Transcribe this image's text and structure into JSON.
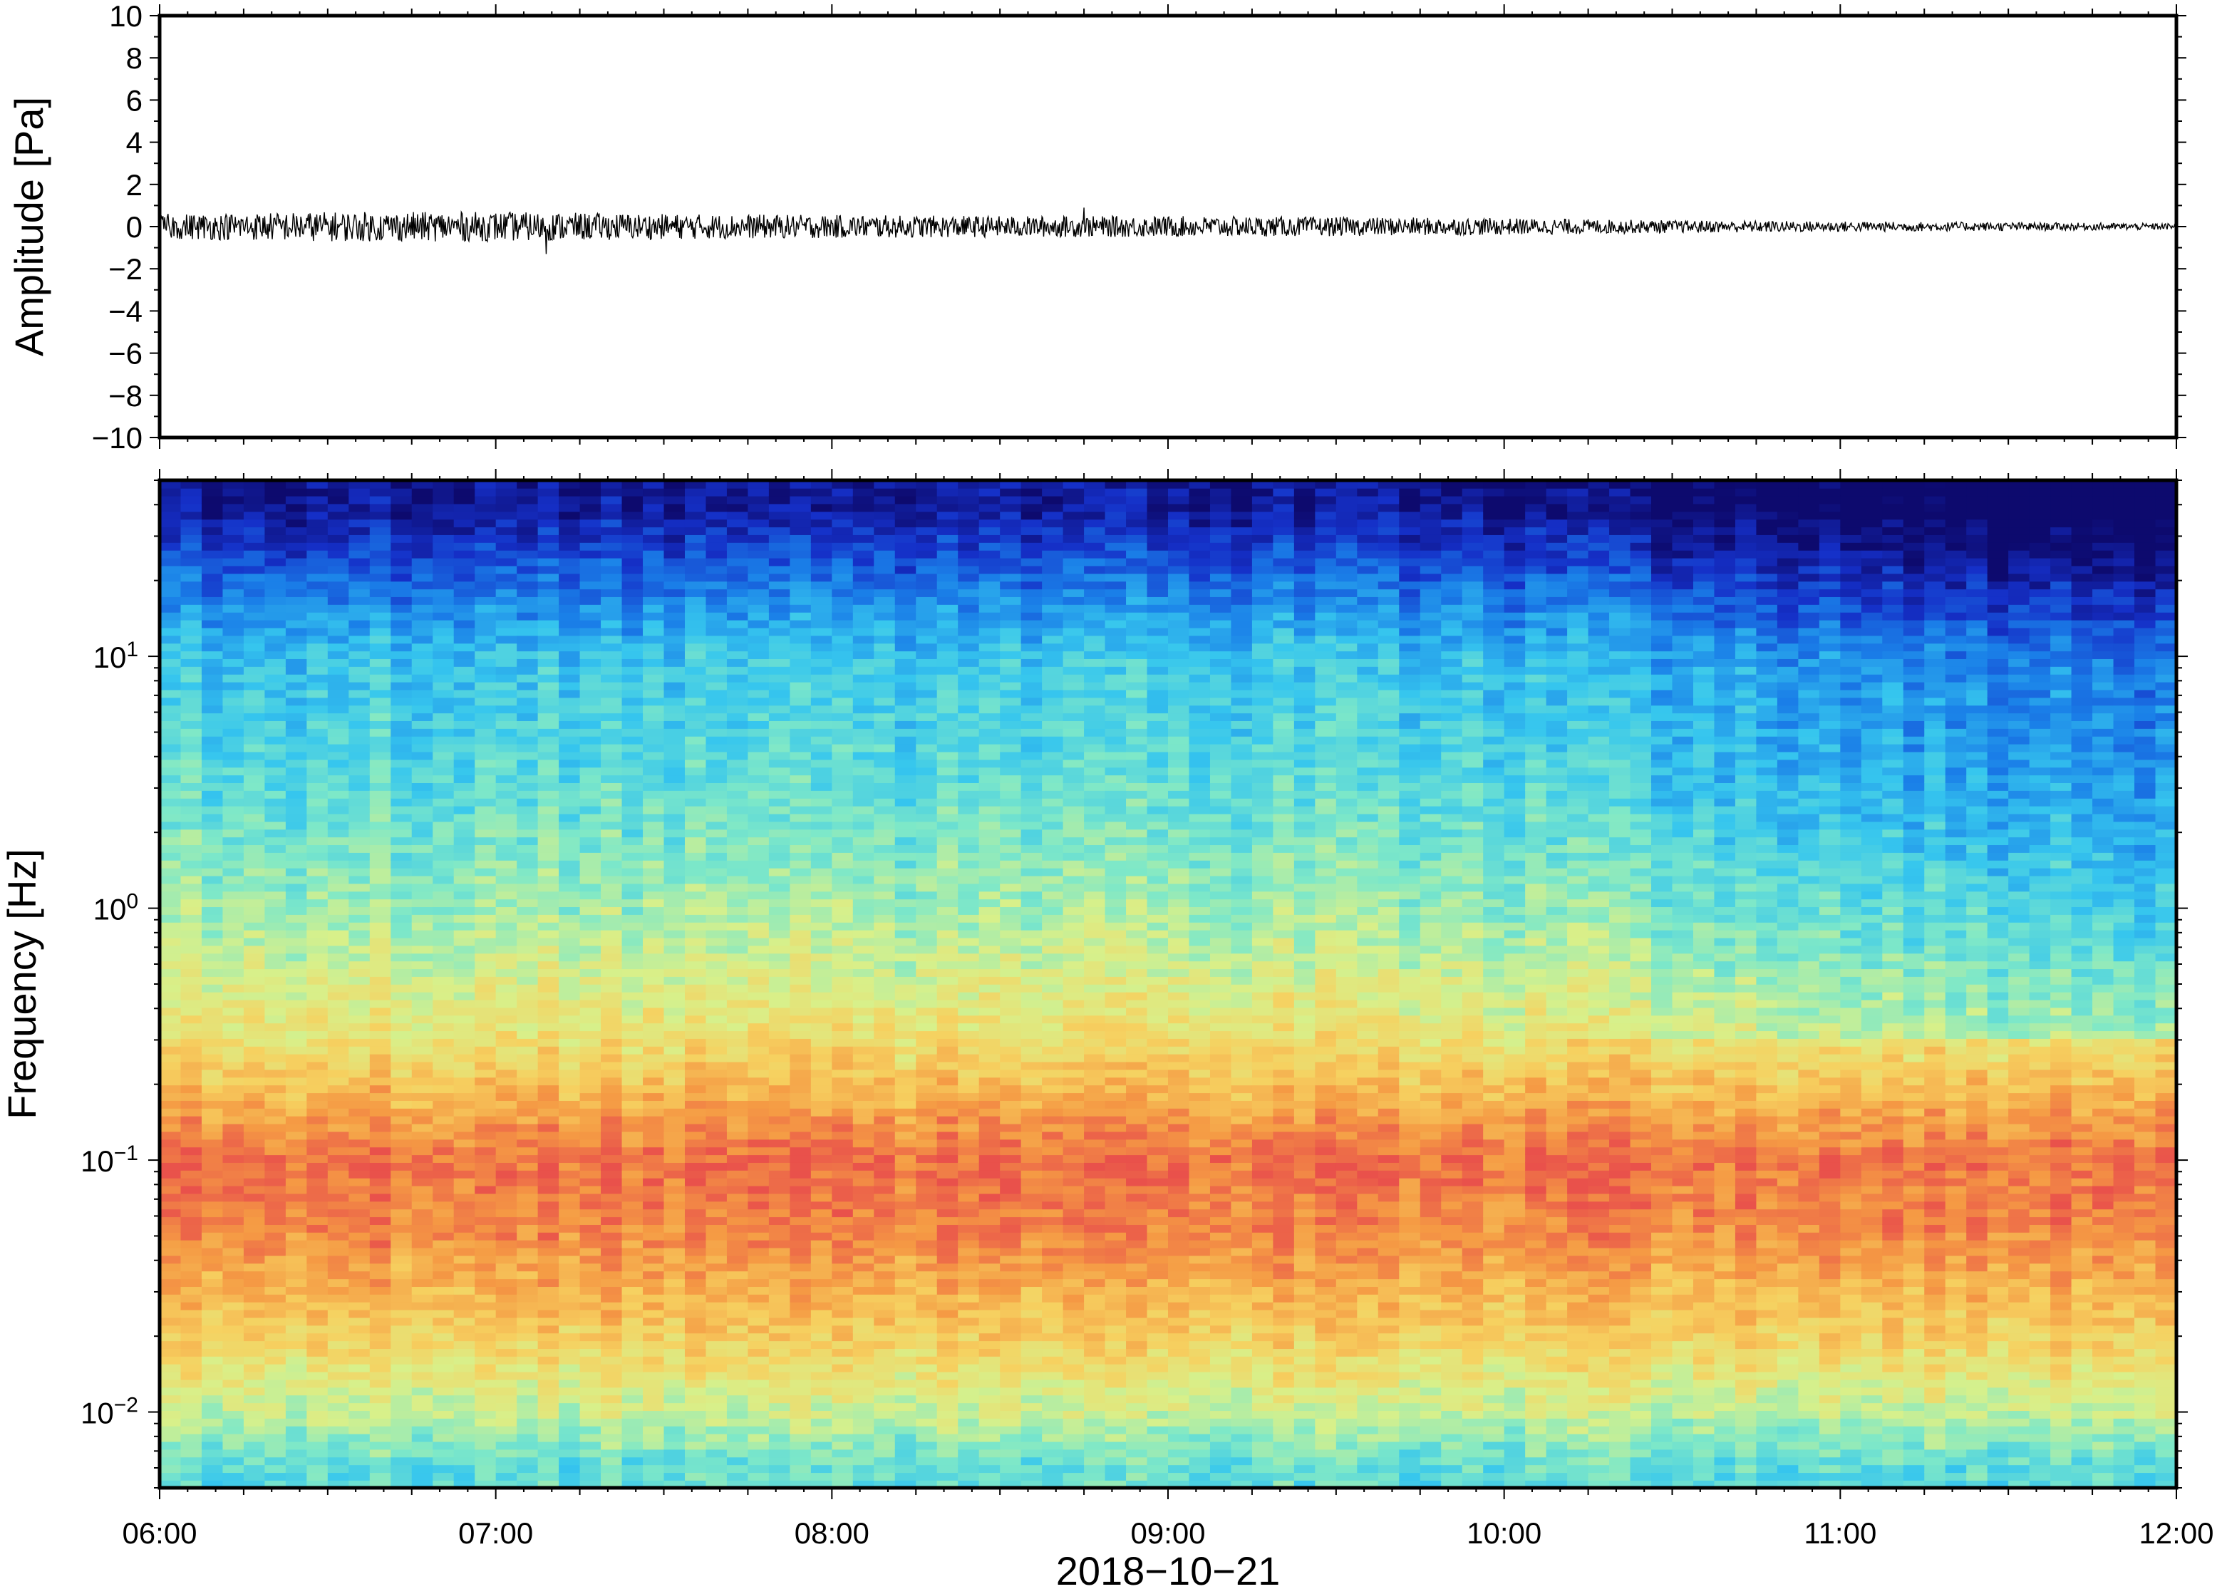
{
  "chart_data": [
    {
      "type": "line",
      "panel": "waveform",
      "ylabel": "Amplitude [Pa]",
      "ylim": [
        -10,
        10
      ],
      "yticks": [
        -10,
        -8,
        -6,
        -4,
        -2,
        0,
        2,
        4,
        6,
        8,
        10
      ],
      "ytick_labels": [
        "−10",
        "−8",
        "−6",
        "−4",
        "−2",
        "0",
        "2",
        "4",
        "6",
        "8",
        "10"
      ],
      "xlim": [
        "06:00",
        "12:00"
      ],
      "series": [
        {
          "envelope_time_h": [
            6.0,
            6.5,
            7.0,
            7.5,
            8.0,
            8.5,
            9.0,
            9.5,
            10.0,
            10.5,
            11.0,
            11.5,
            12.0
          ],
          "envelope_amplitude": [
            0.6,
            0.7,
            0.7,
            0.6,
            0.55,
            0.5,
            0.5,
            0.45,
            0.4,
            0.3,
            0.25,
            0.2,
            0.15
          ],
          "peak_min": -1.3,
          "peak_max": 0.9
        }
      ],
      "color": "#000000"
    },
    {
      "type": "heatmap",
      "panel": "spectrogram",
      "ylabel": "Frequency [Hz]",
      "xlabel": "2018−10−21",
      "x_tick_labels": [
        "06:00",
        "07:00",
        "08:00",
        "09:00",
        "10:00",
        "11:00",
        "12:00"
      ],
      "xlim": [
        "06:00",
        "12:00"
      ],
      "yscale": "log",
      "ylim": [
        0.005,
        50
      ],
      "y_tick_labels": [
        {
          "value": 0.01,
          "base": "10",
          "exp": "−2"
        },
        {
          "value": 0.1,
          "base": "10",
          "exp": "−1"
        },
        {
          "value": 1,
          "base": "10",
          "exp": "0"
        },
        {
          "value": 10,
          "base": "10",
          "exp": "1"
        }
      ],
      "colormap": "jet",
      "colors": [
        "#0d0a6e",
        "#1530c8",
        "#1a7fe8",
        "#36c6ee",
        "#7ee8c8",
        "#d8f08a",
        "#f6d160",
        "#f59a44",
        "#e9514b"
      ],
      "relative_power_by_frequency": {
        "frequency_hz": [
          0.006,
          0.01,
          0.02,
          0.05,
          0.1,
          0.3,
          1,
          3,
          10,
          20,
          40
        ],
        "level_0_to_1": [
          0.45,
          0.6,
          0.75,
          0.9,
          0.95,
          0.7,
          0.55,
          0.45,
          0.38,
          0.22,
          0.05
        ]
      },
      "trend": "power above 0.3 Hz decreases after about 10:00"
    }
  ]
}
